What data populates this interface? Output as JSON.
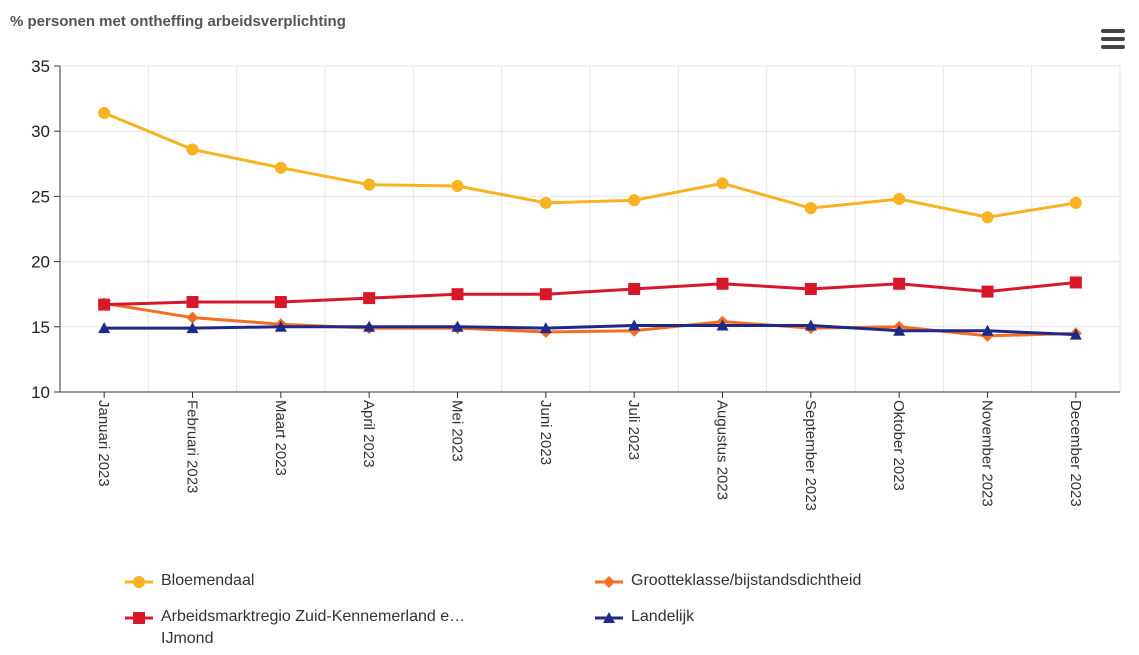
{
  "chart_data": {
    "type": "line",
    "title": "% personen met ontheffing arbeidsverplichting",
    "categories": [
      "Januari 2023",
      "Februari 2023",
      "Maart 2023",
      "April 2023",
      "Mei 2023",
      "Juni 2023",
      "Juli 2023",
      "Augustus 2023",
      "September 2023",
      "Oktober 2023",
      "November 2023",
      "December 2023"
    ],
    "series": [
      {
        "name": "Bloemendaal",
        "color": "#f9b221",
        "marker": "circle",
        "values": [
          31.4,
          28.6,
          27.2,
          25.9,
          25.8,
          24.5,
          24.7,
          26.0,
          24.1,
          24.8,
          23.4,
          24.5
        ]
      },
      {
        "name": "Grootteklasse/bijstandsdichtheid",
        "color": "#f26f22",
        "marker": "diamond",
        "values": [
          16.8,
          15.7,
          15.2,
          14.9,
          14.9,
          14.6,
          14.7,
          15.4,
          14.9,
          15.0,
          14.3,
          14.5
        ]
      },
      {
        "name": "Arbeidsmarktregio Zuid-Kennemerland e…\nIJmond",
        "color": "#d7182a",
        "marker": "square",
        "values": [
          16.7,
          16.9,
          16.9,
          17.2,
          17.5,
          17.5,
          17.9,
          18.3,
          17.9,
          18.3,
          17.7,
          18.4
        ]
      },
      {
        "name": "Landelijk",
        "color": "#20298a",
        "marker": "triangle",
        "values": [
          14.9,
          14.9,
          15.0,
          15.0,
          15.0,
          14.9,
          15.1,
          15.1,
          15.1,
          14.7,
          14.7,
          14.4
        ]
      }
    ],
    "ylim": [
      10,
      35
    ],
    "yticks": [
      10,
      15,
      20,
      25,
      30,
      35
    ],
    "grid": true
  }
}
